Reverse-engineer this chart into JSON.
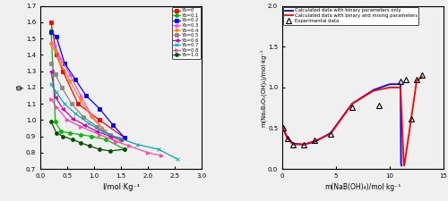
{
  "left": {
    "xlabel": "I/mol·Kg⁻¹",
    "ylabel": "φ",
    "xlim": [
      0.0,
      3.0
    ],
    "ylim": [
      0.7,
      1.7
    ],
    "xticks": [
      0.0,
      0.5,
      1.0,
      1.5,
      2.0,
      2.5,
      3.0
    ],
    "yticks": [
      0.7,
      0.8,
      0.9,
      1.0,
      1.1,
      1.2,
      1.3,
      1.4,
      1.5,
      1.6,
      1.7
    ],
    "series": [
      {
        "label": "Yb=0",
        "color": "#ff0000",
        "marker": "s",
        "x": [
          0.2,
          0.3,
          0.42,
          0.7,
          1.1,
          1.57
        ],
        "y": [
          1.6,
          1.4,
          1.3,
          1.1,
          1.0,
          0.89
        ]
      },
      {
        "label": "Yb=0.1",
        "color": "#00bb00",
        "marker": "o",
        "x": [
          0.2,
          0.28,
          0.38,
          0.55,
          0.75,
          0.95,
          1.22,
          1.57
        ],
        "y": [
          1.55,
          0.99,
          0.93,
          0.92,
          0.91,
          0.9,
          0.88,
          0.82
        ]
      },
      {
        "label": "Yb=0.2",
        "color": "#0000ff",
        "marker": "s",
        "x": [
          0.2,
          0.3,
          0.45,
          0.65,
          0.85,
          1.1,
          1.35,
          1.57
        ],
        "y": [
          1.54,
          1.51,
          1.35,
          1.25,
          1.15,
          1.07,
          0.97,
          0.89
        ]
      },
      {
        "label": "Yb=0.3",
        "color": "#ff44ff",
        "marker": "^",
        "x": [
          0.2,
          0.27,
          0.37,
          0.55,
          0.75,
          0.95,
          1.15,
          1.38
        ],
        "y": [
          1.48,
          1.46,
          1.38,
          1.28,
          1.15,
          1.03,
          0.95,
          0.87
        ]
      },
      {
        "label": "Yb=0.4",
        "color": "#ff8800",
        "marker": "v",
        "x": [
          0.2,
          0.27,
          0.37,
          0.55,
          0.75,
          0.95,
          1.2,
          1.5
        ],
        "y": [
          1.46,
          1.43,
          1.35,
          1.24,
          1.12,
          1.02,
          0.93,
          0.87
        ]
      },
      {
        "label": "Yb=0.5",
        "color": "#888888",
        "marker": "s",
        "x": [
          0.2,
          0.28,
          0.4,
          0.58,
          0.8,
          1.05,
          1.3,
          1.5
        ],
        "y": [
          1.35,
          1.28,
          1.2,
          1.1,
          1.02,
          0.96,
          0.91,
          0.88
        ]
      },
      {
        "label": "Yb=0.6",
        "color": "#cc00cc",
        "marker": "<",
        "x": [
          0.2,
          0.28,
          0.42,
          0.6,
          0.82,
          1.05,
          1.3,
          1.5
        ],
        "y": [
          1.3,
          1.14,
          1.07,
          1.01,
          0.97,
          0.93,
          0.9,
          0.88
        ]
      },
      {
        "label": "Yb=0.7",
        "color": "#00aaaa",
        "marker": "x",
        "x": [
          0.2,
          0.3,
          0.45,
          0.65,
          0.9,
          1.15,
          1.45,
          1.8,
          2.2,
          2.55
        ],
        "y": [
          1.22,
          1.17,
          1.1,
          1.04,
          0.98,
          0.93,
          0.89,
          0.85,
          0.82,
          0.76
        ]
      },
      {
        "label": "Yb=0.8",
        "color": "#ff44aa",
        "marker": ">",
        "x": [
          0.2,
          0.3,
          0.5,
          0.75,
          1.1,
          1.4,
          1.65,
          2.0,
          2.25
        ],
        "y": [
          1.13,
          1.08,
          1.0,
          0.96,
          0.91,
          0.87,
          0.84,
          0.8,
          0.78
        ]
      },
      {
        "label": "Yb=1.0",
        "color": "#005500",
        "marker": "o",
        "x": [
          0.2,
          0.3,
          0.42,
          0.6,
          0.75,
          0.92,
          1.1,
          1.3,
          1.57
        ],
        "y": [
          0.99,
          0.92,
          0.9,
          0.88,
          0.86,
          0.84,
          0.82,
          0.81,
          0.82
        ]
      }
    ]
  },
  "right": {
    "xlabel": "m(NaB(OH)₄)/mol·kg⁻¹",
    "ylabel": "m(Na₂B₄O₅(OH)₄)/mol·kg⁻¹",
    "xlim": [
      0,
      15
    ],
    "ylim": [
      0.0,
      2.0
    ],
    "xticks": [
      0,
      5,
      10,
      15
    ],
    "yticks": [
      0.0,
      0.5,
      1.0,
      1.5,
      2.0
    ],
    "exp_x": [
      0.05,
      0.5,
      1.0,
      2.0,
      3.0,
      4.5,
      6.5,
      9.0,
      11.0,
      11.5,
      12.0,
      12.5,
      13.0
    ],
    "exp_y": [
      0.5,
      0.37,
      0.3,
      0.3,
      0.35,
      0.43,
      0.76,
      0.78,
      1.07,
      1.1,
      0.62,
      1.1,
      1.15
    ],
    "blue_x": [
      0.05,
      0.5,
      1.0,
      2.0,
      3.0,
      4.5,
      6.5,
      8.5,
      10.0,
      10.8,
      11.0,
      11.05,
      11.1
    ],
    "blue_y": [
      0.5,
      0.38,
      0.31,
      0.3,
      0.33,
      0.44,
      0.8,
      0.97,
      1.04,
      1.04,
      1.04,
      0.06,
      0.04
    ],
    "red_x": [
      0.05,
      0.5,
      1.0,
      2.0,
      3.0,
      4.5,
      6.5,
      8.5,
      10.0,
      11.0,
      11.3,
      11.35,
      12.0,
      12.5,
      13.0
    ],
    "red_y": [
      0.5,
      0.37,
      0.3,
      0.3,
      0.34,
      0.43,
      0.8,
      0.96,
      1.0,
      1.0,
      0.06,
      0.04,
      0.62,
      1.08,
      1.13
    ]
  }
}
